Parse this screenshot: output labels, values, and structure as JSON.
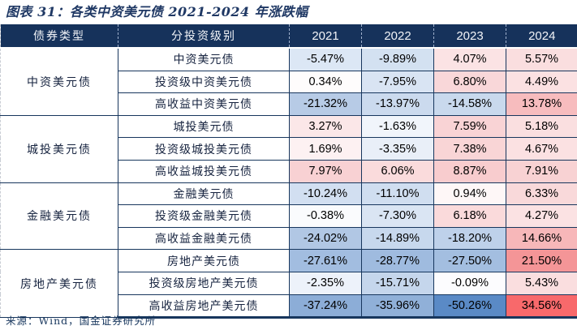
{
  "title": "图表 31：各类中资美元债 2021-2024 年涨跌幅",
  "source": "来源：Wind，国金证券研究所",
  "palette": {
    "header_bg": "#16325B",
    "grid_line": "#17365D",
    "title_color": "#1F3864",
    "scale_max_red": "#F8696B",
    "scale_mid_white": "#FCFCFF",
    "scale_min_blue": "#5A8AC6"
  },
  "table": {
    "col_headers": [
      "债券类型",
      "分投资级别",
      "2021",
      "2022",
      "2023",
      "2024"
    ],
    "groups": [
      {
        "type": "中资美元债",
        "rows": [
          {
            "label": "中资美元债",
            "values": [
              "-5.47%",
              "-9.89%",
              "4.07%",
              "5.57%"
            ],
            "colors": [
              "#DCE7F5",
              "#D3E1F1",
              "#FBE3E4",
              "#FADEDF"
            ]
          },
          {
            "label": "投资级中资美元债",
            "values": [
              "0.34%",
              "-7.95%",
              "6.80%",
              "4.49%"
            ],
            "colors": [
              "#FEFCFC",
              "#D9E4F3",
              "#F9D7D9",
              "#FBE1E2"
            ]
          },
          {
            "label": "高收益中资美元债",
            "values": [
              "-21.32%",
              "-13.97%",
              "-14.58%",
              "13.78%"
            ],
            "colors": [
              "#B7CBE6",
              "#CBDAEE",
              "#C9D9ED",
              "#F7BCBE"
            ]
          }
        ]
      },
      {
        "type": "城投美元债",
        "rows": [
          {
            "label": "城投美元债",
            "values": [
              "3.27%",
              "-1.63%",
              "7.59%",
              "5.18%"
            ],
            "colors": [
              "#FBE7E8",
              "#F1F5FB",
              "#F9D3D5",
              "#FADFE0"
            ]
          },
          {
            "label": "投资级城投美元债",
            "values": [
              "1.69%",
              "-3.35%",
              "7.38%",
              "4.67%"
            ],
            "colors": [
              "#FDF1F2",
              "#E9EFF8",
              "#F9D5D6",
              "#FBE1E2"
            ]
          },
          {
            "label": "高收益城投美元债",
            "values": [
              "7.97%",
              "6.06%",
              "8.87%",
              "7.91%"
            ],
            "colors": [
              "#F8D1D3",
              "#FADBDC",
              "#F8CCCE",
              "#F8D2D3"
            ]
          }
        ]
      },
      {
        "type": "金融美元债",
        "rows": [
          {
            "label": "金融美元债",
            "values": [
              "-10.24%",
              "-11.10%",
              "0.94%",
              "6.33%"
            ],
            "colors": [
              "#D2DFF1",
              "#D0DEF0",
              "#FEF7F7",
              "#F9D9DA"
            ]
          },
          {
            "label": "投资级金融美元债",
            "values": [
              "-0.38%",
              "-7.30%",
              "6.18%",
              "4.27%"
            ],
            "colors": [
              "#FAFBFD",
              "#DAE5F3",
              "#FADADB",
              "#FBE2E3"
            ]
          },
          {
            "label": "高收益金融美元债",
            "values": [
              "-24.02%",
              "-14.89%",
              "-18.20%",
              "14.66%"
            ],
            "colors": [
              "#B1C7E4",
              "#C7D8ED",
              "#BED1EA",
              "#F7B7B9"
            ]
          }
        ]
      },
      {
        "type": "房地产美元债",
        "rows": [
          {
            "label": "房地产美元债",
            "values": [
              "-27.61%",
              "-28.77%",
              "-27.50%",
              "21.50%"
            ],
            "colors": [
              "#A2BDE0",
              "#9FBBDF",
              "#A3BEE0",
              "#F49597"
            ]
          },
          {
            "label": "投资级房地产美元债",
            "values": [
              "-2.35%",
              "-15.71%",
              "-0.09%",
              "5.43%"
            ],
            "colors": [
              "#EDF2FA",
              "#C5D6EC",
              "#FCFCFE",
              "#FADEDF"
            ]
          },
          {
            "label": "高收益房地产美元债",
            "values": [
              "-37.24%",
              "-35.96%",
              "-50.26%",
              "34.56%"
            ],
            "colors": [
              "#8CADD7",
              "#90B0D8",
              "#5A8AC6",
              "#F8696B"
            ]
          }
        ]
      }
    ]
  },
  "chart_data": {
    "type": "table",
    "title": "图表 31：各类中资美元债 2021-2024 年涨跌幅",
    "unit": "%",
    "columns": [
      "债券类型",
      "分投资级别",
      "2021",
      "2022",
      "2023",
      "2024"
    ],
    "rows": [
      [
        "中资美元债",
        "中资美元债",
        -5.47,
        -9.89,
        4.07,
        5.57
      ],
      [
        "中资美元债",
        "投资级中资美元债",
        0.34,
        -7.95,
        6.8,
        4.49
      ],
      [
        "中资美元债",
        "高收益中资美元债",
        -21.32,
        -13.97,
        -14.58,
        13.78
      ],
      [
        "城投美元债",
        "城投美元债",
        3.27,
        -1.63,
        7.59,
        5.18
      ],
      [
        "城投美元债",
        "投资级城投美元债",
        1.69,
        -3.35,
        7.38,
        4.67
      ],
      [
        "城投美元债",
        "高收益城投美元债",
        7.97,
        6.06,
        8.87,
        7.91
      ],
      [
        "金融美元债",
        "金融美元债",
        -10.24,
        -11.1,
        0.94,
        6.33
      ],
      [
        "金融美元债",
        "投资级金融美元债",
        -0.38,
        -7.3,
        6.18,
        4.27
      ],
      [
        "金融美元债",
        "高收益金融美元债",
        -24.02,
        -14.89,
        -18.2,
        14.66
      ],
      [
        "房地产美元债",
        "房地产美元债",
        -27.61,
        -28.77,
        -27.5,
        21.5
      ],
      [
        "房地产美元债",
        "投资级房地产美元债",
        -2.35,
        -15.71,
        -0.09,
        5.43
      ],
      [
        "房地产美元债",
        "高收益房地产美元债",
        -37.24,
        -35.96,
        -50.26,
        34.56
      ]
    ],
    "conditional_format": "cell fill: red scale for positive returns, blue scale for negative returns, intensity proportional to magnitude; anchors blue #5A8AC6 at -50.26, white at 0, red #F8696B at +34.56"
  }
}
